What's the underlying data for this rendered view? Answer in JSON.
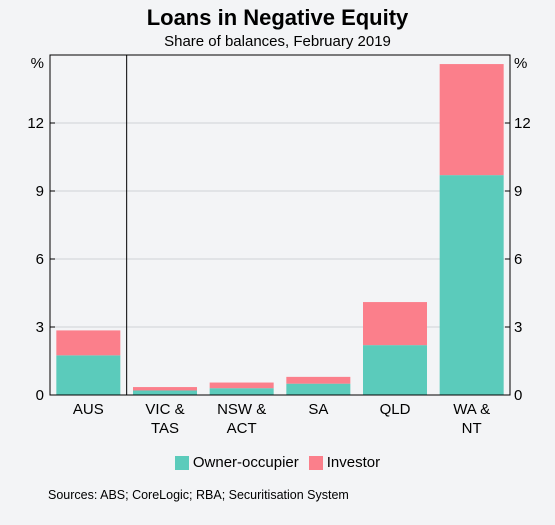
{
  "chart_data": {
    "type": "bar",
    "stacked": true,
    "title": "Loans in Negative Equity",
    "subtitle": "Share of balances, February 2019",
    "unit": "%",
    "categories": [
      [
        "AUS"
      ],
      [
        "VIC &",
        "TAS"
      ],
      [
        "NSW &",
        "ACT"
      ],
      [
        "SA"
      ],
      [
        "QLD"
      ],
      [
        "WA &",
        "NT"
      ]
    ],
    "series": [
      {
        "name": "Owner-occupier",
        "color": "#5bcbbb",
        "values": [
          1.75,
          0.2,
          0.3,
          0.5,
          2.2,
          9.7
        ]
      },
      {
        "name": "Investor",
        "color": "#fb7f8b",
        "values": [
          1.1,
          0.15,
          0.25,
          0.3,
          1.9,
          4.9
        ]
      }
    ],
    "ylim": [
      0,
      15
    ],
    "yticks": [
      0,
      3,
      6,
      9,
      12
    ],
    "grid": true,
    "legend_position": "bottom",
    "separator_after": "AUS",
    "source": "Sources: ABS; CoreLogic; RBA; Securitisation System"
  }
}
